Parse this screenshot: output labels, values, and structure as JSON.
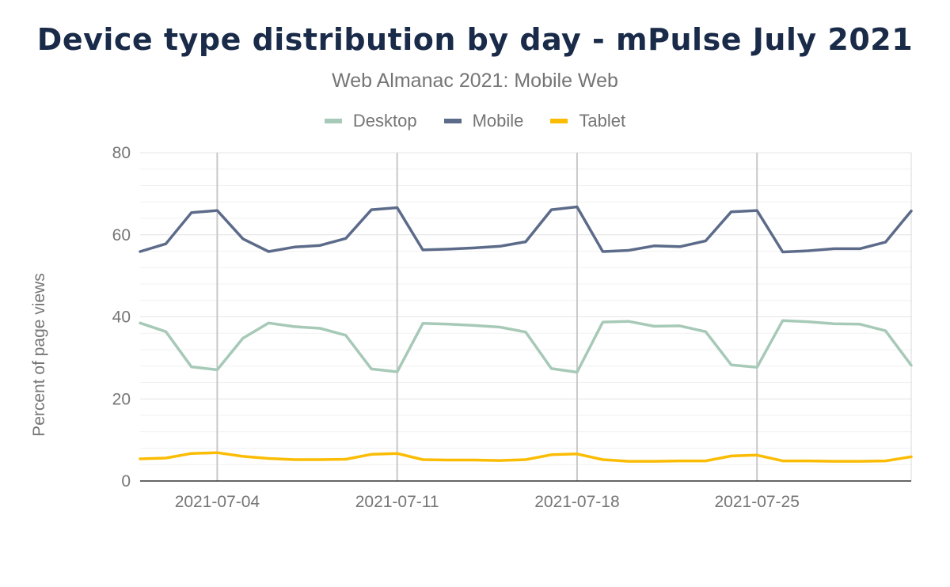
{
  "chart_data": {
    "type": "line",
    "title": "Device type distribution by day - mPulse July 2021",
    "subtitle": "Web Almanac 2021: Mobile Web",
    "xlabel": "",
    "ylabel": "Percent of page views",
    "ylim": [
      0,
      80
    ],
    "yticks": [
      0,
      20,
      40,
      60,
      80
    ],
    "xlim": [
      "2021-07-01",
      "2021-07-31"
    ],
    "xticks": [
      "2021-07-04",
      "2021-07-11",
      "2021-07-18",
      "2021-07-25"
    ],
    "grid": true,
    "legend_position": "top",
    "x": [
      "2021-07-01",
      "2021-07-02",
      "2021-07-03",
      "2021-07-04",
      "2021-07-05",
      "2021-07-06",
      "2021-07-07",
      "2021-07-08",
      "2021-07-09",
      "2021-07-10",
      "2021-07-11",
      "2021-07-12",
      "2021-07-13",
      "2021-07-14",
      "2021-07-15",
      "2021-07-16",
      "2021-07-17",
      "2021-07-18",
      "2021-07-19",
      "2021-07-20",
      "2021-07-21",
      "2021-07-22",
      "2021-07-23",
      "2021-07-24",
      "2021-07-25",
      "2021-07-26",
      "2021-07-27",
      "2021-07-28",
      "2021-07-29",
      "2021-07-30",
      "2021-07-31"
    ],
    "series": [
      {
        "name": "Desktop",
        "color": "#a7c9b7",
        "values": [
          38.5,
          36.4,
          27.8,
          27.1,
          34.8,
          38.5,
          37.6,
          37.2,
          35.5,
          27.3,
          26.6,
          38.4,
          38.2,
          37.9,
          37.5,
          36.3,
          27.4,
          26.5,
          38.7,
          38.9,
          37.7,
          37.8,
          36.4,
          28.3,
          27.7,
          39.1,
          38.8,
          38.3,
          38.2,
          36.6,
          28.2
        ]
      },
      {
        "name": "Mobile",
        "color": "#5c6b89",
        "values": [
          55.9,
          57.8,
          65.4,
          65.9,
          59.0,
          55.9,
          57.0,
          57.4,
          59.1,
          66.1,
          66.6,
          56.3,
          56.5,
          56.8,
          57.2,
          58.3,
          66.1,
          66.8,
          55.9,
          56.2,
          57.3,
          57.1,
          58.5,
          65.6,
          65.9,
          55.8,
          56.1,
          56.6,
          56.6,
          58.2,
          65.8
        ]
      },
      {
        "name": "Tablet",
        "color": "#fbbc04",
        "values": [
          5.4,
          5.6,
          6.7,
          6.9,
          6.0,
          5.5,
          5.2,
          5.2,
          5.3,
          6.5,
          6.7,
          5.2,
          5.1,
          5.1,
          5.0,
          5.2,
          6.4,
          6.6,
          5.2,
          4.8,
          4.8,
          4.9,
          4.9,
          6.1,
          6.3,
          4.9,
          4.9,
          4.8,
          4.8,
          4.9,
          5.9
        ]
      }
    ]
  }
}
